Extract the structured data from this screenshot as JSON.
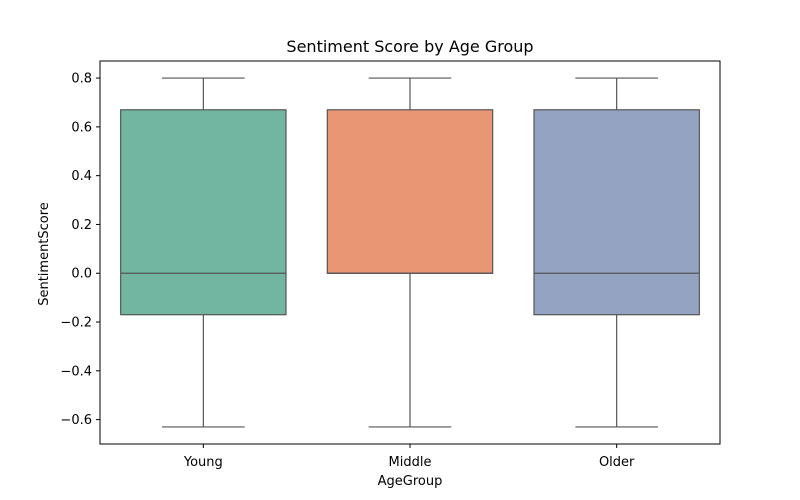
{
  "chart_data": {
    "type": "box",
    "title": "Sentiment Score by Age Group",
    "xlabel": "AgeGroup",
    "ylabel": "SentimentScore",
    "ylim": [
      -0.7,
      0.87
    ],
    "yticks": [
      -0.6,
      -0.4,
      -0.2,
      0.0,
      0.2,
      0.4,
      0.6,
      0.8
    ],
    "ytick_labels": [
      "−0.6",
      "−0.4",
      "−0.2",
      "0.0",
      "0.2",
      "0.4",
      "0.6",
      "0.8"
    ],
    "grid": false,
    "categories": [
      "Young",
      "Middle",
      "Older"
    ],
    "boxes": [
      {
        "category": "Young",
        "min": -0.63,
        "q1": -0.17,
        "median": 0.0,
        "q3": 0.67,
        "max": 0.8,
        "color": "#72b6a1"
      },
      {
        "category": "Middle",
        "min": -0.63,
        "q1": 0.0,
        "median": 0.0,
        "q3": 0.67,
        "max": 0.8,
        "color": "#e99675"
      },
      {
        "category": "Older",
        "min": -0.63,
        "q1": -0.17,
        "median": 0.0,
        "q3": 0.67,
        "max": 0.8,
        "color": "#95a3c3"
      }
    ],
    "line_color": "#555555"
  }
}
